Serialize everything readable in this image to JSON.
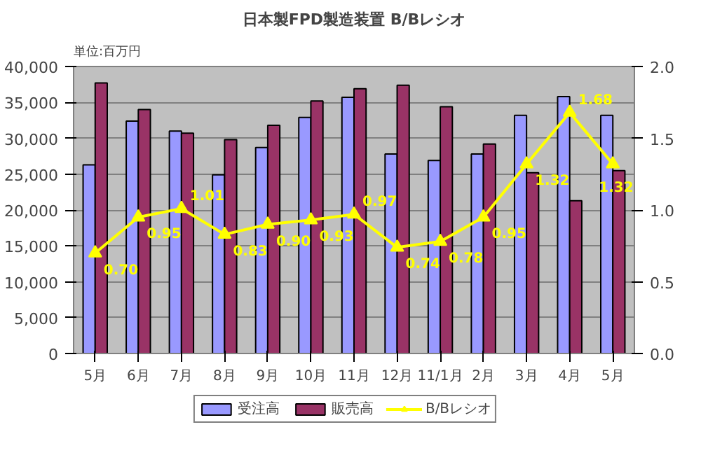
{
  "chart_data": {
    "type": "bar",
    "title": "日本製FPD製造装置 B/Bレシオ",
    "annotations": [
      "単位:百万円"
    ],
    "categories": [
      "5月",
      "6月",
      "7月",
      "8月",
      "9月",
      "10月",
      "11月",
      "12月",
      "11/1月",
      "2月",
      "3月",
      "4月",
      "5月"
    ],
    "series": [
      {
        "name": "受注高",
        "color": "#9999ff",
        "values": [
          26300,
          32400,
          31000,
          24900,
          28700,
          32900,
          35700,
          27800,
          26900,
          27800,
          33200,
          35800,
          33200
        ]
      },
      {
        "name": "販売高",
        "color": "#993366",
        "values": [
          37700,
          34000,
          30700,
          29800,
          31800,
          35200,
          36900,
          37400,
          34400,
          29200,
          25200,
          21300,
          25500
        ]
      },
      {
        "name": "B/Bレシオ",
        "type": "line",
        "axis": "y2",
        "color": "#ffff00",
        "marker": "triangle",
        "data_labels": true,
        "values": [
          0.7,
          0.95,
          1.01,
          0.83,
          0.9,
          0.93,
          0.97,
          0.74,
          0.78,
          0.95,
          1.32,
          1.68,
          1.32
        ],
        "value_labels": [
          "0.70",
          "0.95",
          "1.01",
          "0.83",
          "0.90",
          "0.93",
          "0.97",
          "0.74",
          "0.78",
          "0.95",
          "1.32",
          "1.68",
          "1.32"
        ]
      }
    ],
    "ylim": [
      0,
      40000
    ],
    "yticks": [
      {
        "value": 0,
        "label": "0"
      },
      {
        "value": 5000,
        "label": "5,000"
      },
      {
        "value": 10000,
        "label": "10,000"
      },
      {
        "value": 15000,
        "label": "15,000"
      },
      {
        "value": 20000,
        "label": "20,000"
      },
      {
        "value": 25000,
        "label": "25,000"
      },
      {
        "value": 30000,
        "label": "30,000"
      },
      {
        "value": 35000,
        "label": "35,000"
      },
      {
        "value": 40000,
        "label": "40,000"
      }
    ],
    "y2lim": [
      0,
      2
    ],
    "y2ticks": [
      {
        "value": 0,
        "label": "0.0"
      },
      {
        "value": 0.5,
        "label": "0.5"
      },
      {
        "value": 1,
        "label": "1.0"
      },
      {
        "value": 1.5,
        "label": "1.5"
      },
      {
        "value": 2,
        "label": "2.0"
      }
    ],
    "grid": "y",
    "legend": "bottom"
  }
}
